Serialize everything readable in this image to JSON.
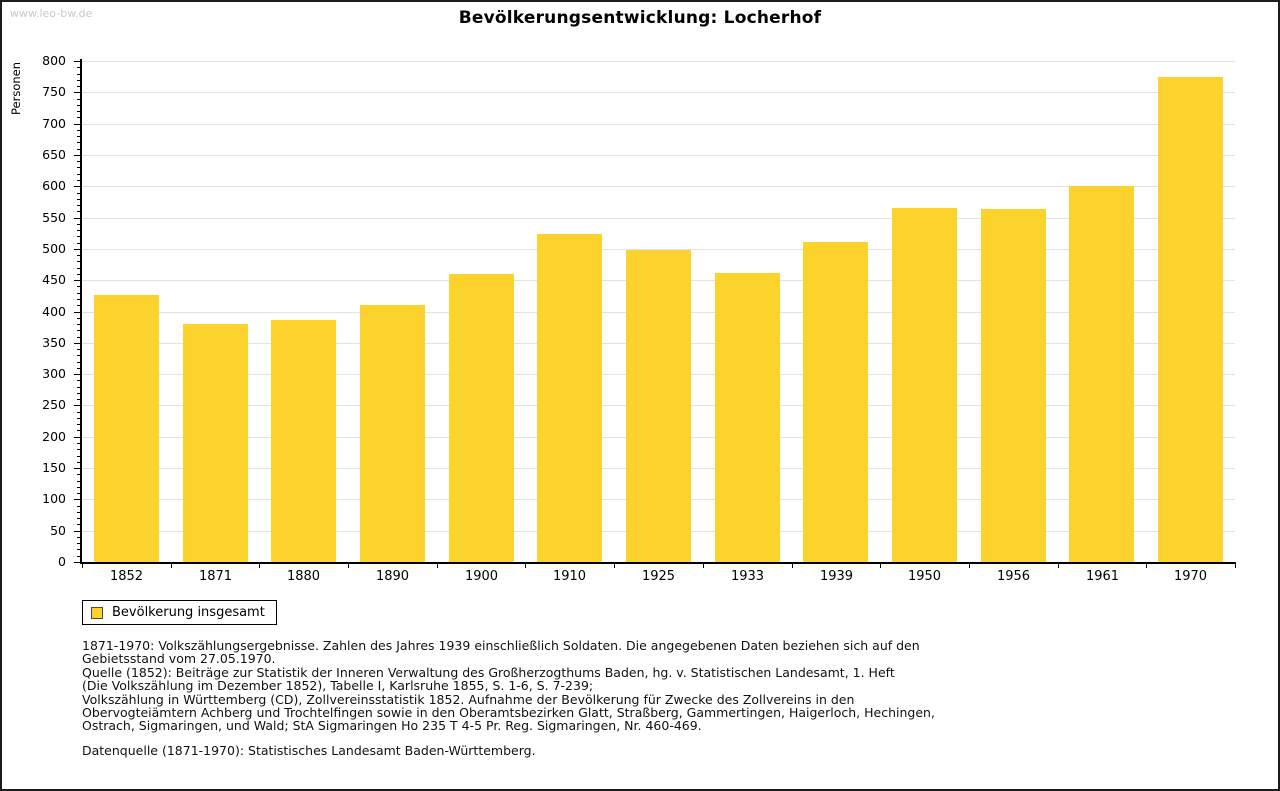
{
  "watermark": "www.leo-bw.de",
  "chart_data": {
    "type": "bar",
    "title": "Bevölkerungsentwicklung: Locherhof",
    "xlabel": "",
    "ylabel": "Personen",
    "categories": [
      "1852",
      "1871",
      "1880",
      "1890",
      "1900",
      "1910",
      "1925",
      "1933",
      "1939",
      "1950",
      "1956",
      "1961",
      "1970"
    ],
    "values": [
      427,
      380,
      387,
      410,
      460,
      524,
      498,
      461,
      511,
      566,
      563,
      600,
      774
    ],
    "series_name": "Bevölkerung insgesamt",
    "ylim": [
      0,
      800
    ],
    "ytick_step": 50,
    "ytick_minor_step": 10,
    "grid": "horizontal",
    "legend": {
      "label": "Bevölkerung insgesamt",
      "position": "bottom-left"
    }
  },
  "colors": {
    "bar": "#fcd32d",
    "grid": "#e2e2e2",
    "axis": "#000000",
    "watermark_text": "#c9c9c9"
  },
  "footnotes": {
    "lines": [
      "1871-1970: Volkszählungsergebnisse. Zahlen des Jahres 1939 einschließlich Soldaten. Die angegebenen Daten beziehen sich auf den",
      "Gebietsstand vom 27.05.1970.",
      "Quelle (1852): Beiträge zur Statistik der Inneren Verwaltung des Großherzogthums Baden, hg. v. Statistischen Landesamt, 1. Heft",
      "(Die Volkszählung im Dezember 1852), Tabelle I, Karlsruhe 1855, S. 1-6, S. 7-239;",
      "Volkszählung in Württemberg (CD), Zollvereinsstatistik 1852. Aufnahme der Bevölkerung für Zwecke des Zollvereins in den",
      "Obervogteiämtern Achberg und Trochtelfingen sowie in den Oberamtsbezirken Glatt, Straßberg, Gammertingen, Haigerloch, Hechingen,",
      "Ostrach, Sigmaringen, und Wald; StA Sigmaringen Ho 235 T 4-5 Pr. Reg. Sigmaringen, Nr. 460-469."
    ],
    "datasource": "Datenquelle (1871-1970): Statistisches Landesamt Baden-Württemberg."
  }
}
